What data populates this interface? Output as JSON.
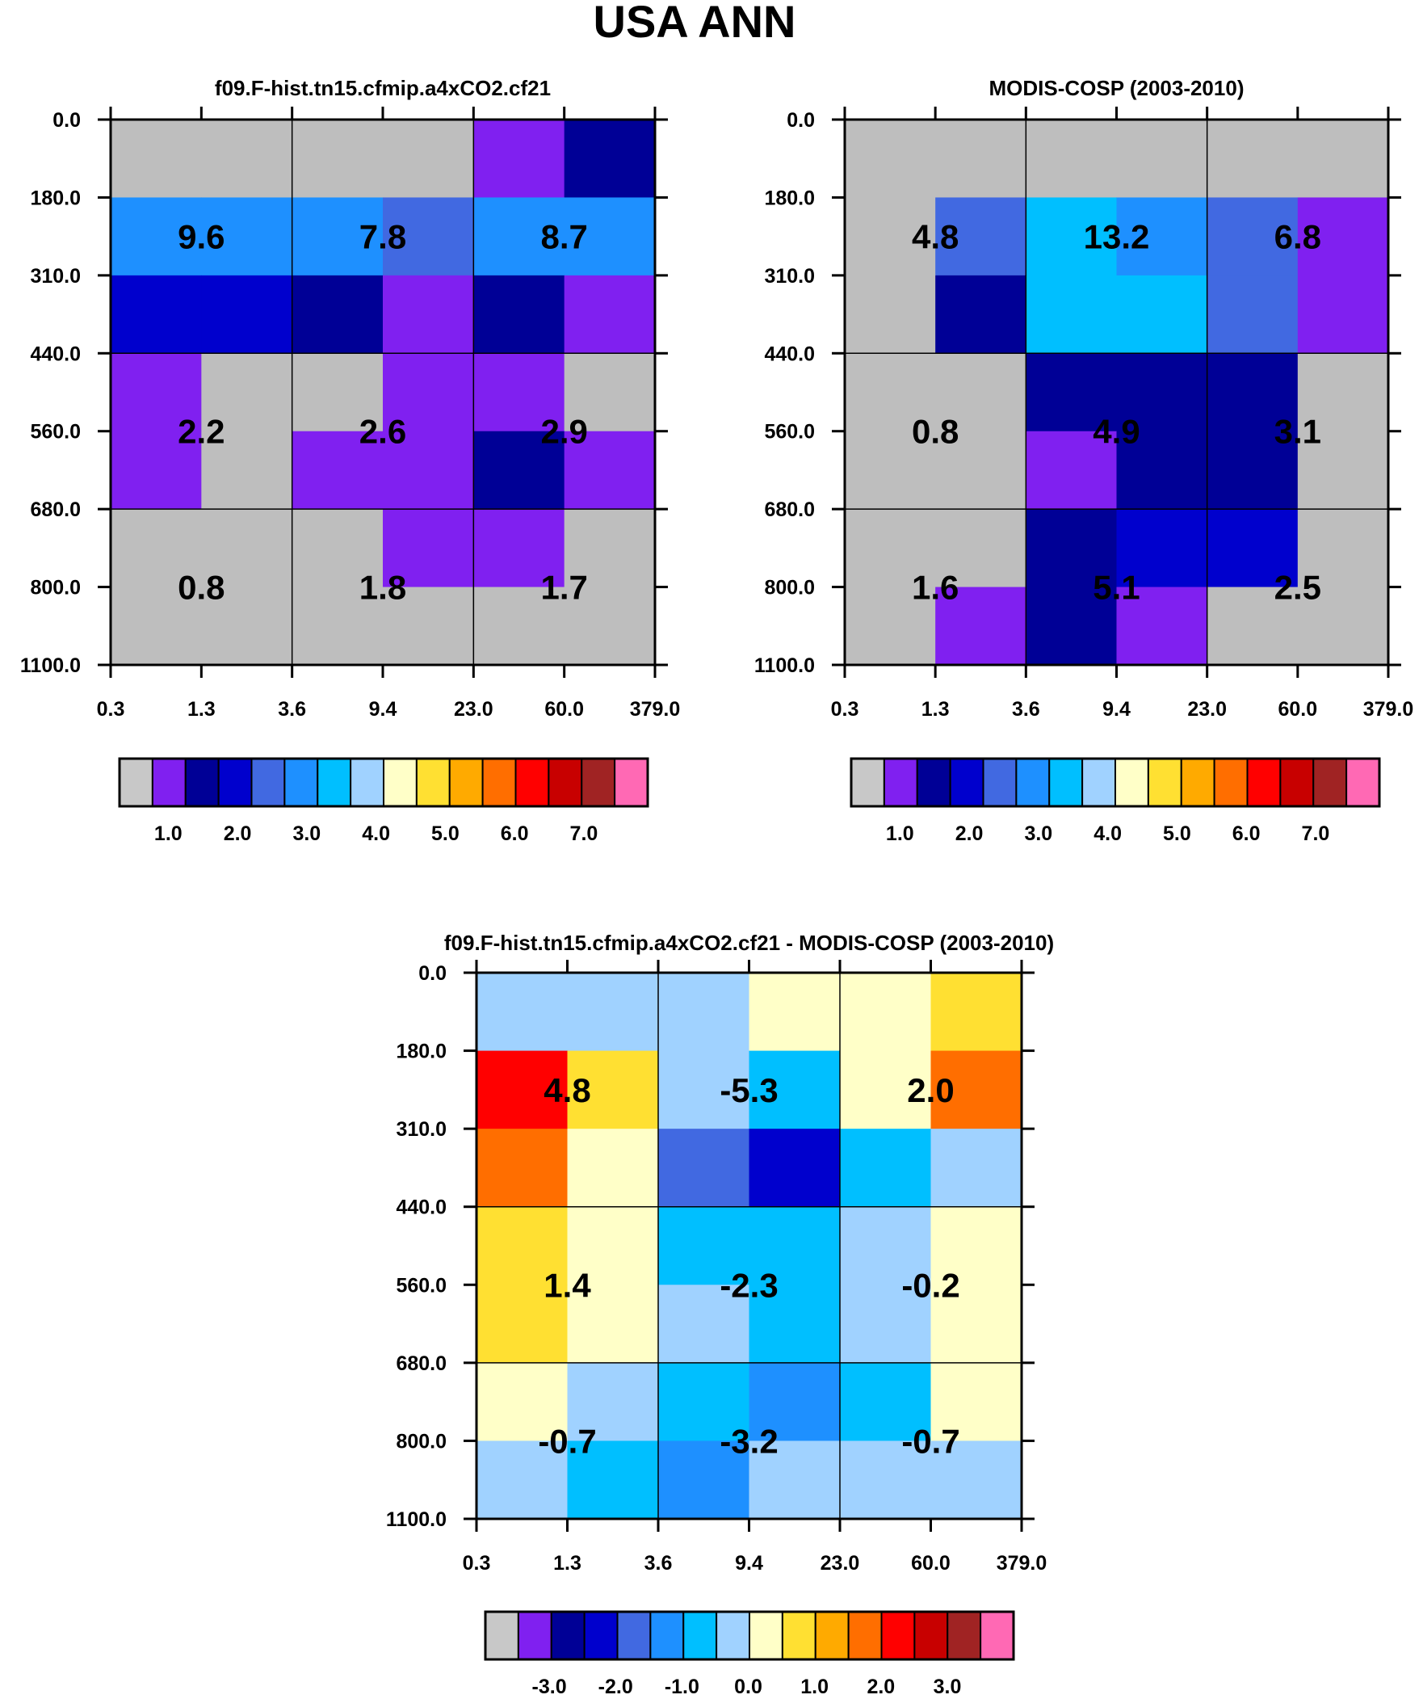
{
  "chart_data": {
    "type": "heatmap",
    "title": "USA ANN",
    "x_ticks": [
      "0.3",
      "1.3",
      "3.6",
      "9.4",
      "23.0",
      "60.0",
      "379.0"
    ],
    "y_ticks": [
      "0.0",
      "180.0",
      "310.0",
      "440.0",
      "560.0",
      "680.0",
      "800.0",
      "1100.0"
    ],
    "colorbar_colors": [
      "#c8c8c8",
      "#8020f0",
      "#000096",
      "#0000cd",
      "#4169e1",
      "#1e90ff",
      "#00bfff",
      "#a0d2ff",
      "#ffffc8",
      "#ffe032",
      "#ffaa00",
      "#ff6e00",
      "#ff0000",
      "#c80000",
      "#a02323",
      "#ff69b4"
    ],
    "panels": [
      {
        "title": "f09.F-hist.tn15.cfmip.a4xCO2.cf21",
        "cells": [
          [
            0,
            0,
            0,
            0,
            1,
            2
          ],
          [
            5,
            5,
            5,
            4,
            5,
            5
          ],
          [
            3,
            3,
            2,
            1,
            2,
            1
          ],
          [
            1,
            0,
            0,
            1,
            1,
            0
          ],
          [
            1,
            0,
            1,
            1,
            2,
            1
          ],
          [
            0,
            0,
            0,
            1,
            1,
            0
          ],
          [
            0,
            0,
            0,
            0,
            0,
            0
          ]
        ],
        "block_values": [
          [
            "9.6",
            "7.8",
            "8.7"
          ],
          [
            "2.2",
            "2.6",
            "2.9"
          ],
          [
            "0.8",
            "1.8",
            "1.7"
          ]
        ],
        "colorbar_labels": [
          "1.0",
          "2.0",
          "3.0",
          "4.0",
          "5.0",
          "6.0",
          "7.0"
        ]
      },
      {
        "title": "MODIS-COSP (2003-2010)",
        "cells": [
          [
            0,
            0,
            0,
            0,
            0,
            0
          ],
          [
            0,
            4,
            6,
            5,
            4,
            1
          ],
          [
            0,
            2,
            6,
            6,
            4,
            1
          ],
          [
            0,
            0,
            2,
            2,
            2,
            0
          ],
          [
            0,
            0,
            1,
            2,
            2,
            0
          ],
          [
            0,
            0,
            2,
            3,
            3,
            0
          ],
          [
            0,
            1,
            2,
            1,
            0,
            0
          ]
        ],
        "block_values": [
          [
            "4.8",
            "13.2",
            "6.8"
          ],
          [
            "0.8",
            "4.9",
            "3.1"
          ],
          [
            "1.6",
            "5.1",
            "2.5"
          ]
        ],
        "colorbar_labels": [
          "1.0",
          "2.0",
          "3.0",
          "4.0",
          "5.0",
          "6.0",
          "7.0"
        ]
      },
      {
        "title": "f09.F-hist.tn15.cfmip.a4xCO2.cf21 - MODIS-COSP (2003-2010)",
        "cells": [
          [
            7,
            7,
            7,
            8,
            8,
            9
          ],
          [
            12,
            9,
            7,
            6,
            8,
            11
          ],
          [
            11,
            8,
            4,
            3,
            6,
            7
          ],
          [
            9,
            8,
            6,
            6,
            7,
            8
          ],
          [
            9,
            8,
            7,
            6,
            7,
            8
          ],
          [
            8,
            7,
            6,
            5,
            6,
            8
          ],
          [
            7,
            6,
            5,
            7,
            7,
            7
          ]
        ],
        "block_values": [
          [
            "4.8",
            "-5.3",
            "2.0"
          ],
          [
            "1.4",
            "-2.3",
            "-0.2"
          ],
          [
            "-0.7",
            "-3.2",
            "-0.7"
          ]
        ],
        "colorbar_labels": [
          "-3.0",
          "-2.0",
          "-1.0",
          "0.0",
          "1.0",
          "2.0",
          "3.0"
        ]
      }
    ]
  }
}
